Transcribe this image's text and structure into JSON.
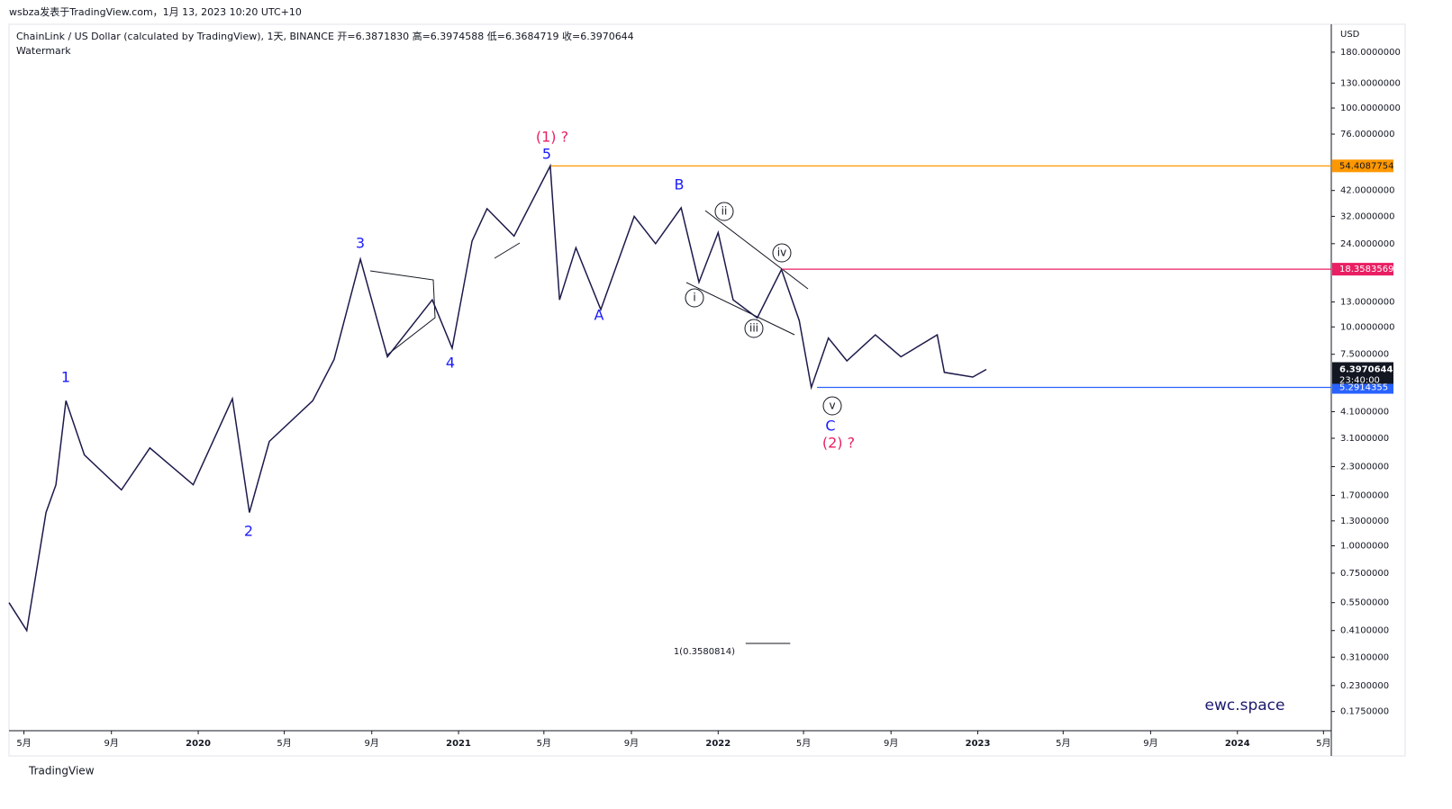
{
  "header": {
    "published": "wsbza发表于TradingView.com，1月 13, 2023 10:20 UTC+10",
    "symbol": "ChainLink / US Dollar (calculated by TradingView), 1天, BINANCE  开=6.3871830  高=6.3974588  低=6.3684719  收=6.3970644",
    "watermark": "Watermark",
    "brand": "ewc.space",
    "footer": "TradingView"
  },
  "chart_data": {
    "type": "line",
    "log_scale": true,
    "y_label": "USD",
    "xlim": [
      "2019-04-10",
      "2024-05-12"
    ],
    "ylim": [
      0.143,
      239
    ],
    "xticks": [
      {
        "value": "2019-05-01",
        "label": "5月"
      },
      {
        "value": "2019-09-01",
        "label": "9月"
      },
      {
        "value": "2020-01-01",
        "label": "2020"
      },
      {
        "value": "2020-05-01",
        "label": "5月"
      },
      {
        "value": "2020-09-01",
        "label": "9月"
      },
      {
        "value": "2021-01-01",
        "label": "2021"
      },
      {
        "value": "2021-05-01",
        "label": "5月"
      },
      {
        "value": "2021-09-01",
        "label": "9月"
      },
      {
        "value": "2022-01-01",
        "label": "2022"
      },
      {
        "value": "2022-05-01",
        "label": "5月"
      },
      {
        "value": "2022-09-01",
        "label": "9月"
      },
      {
        "value": "2023-01-01",
        "label": "2023"
      },
      {
        "value": "2023-05-01",
        "label": "5月"
      },
      {
        "value": "2023-09-01",
        "label": "9月"
      },
      {
        "value": "2024-01-01",
        "label": "2024"
      },
      {
        "value": "2024-05-01",
        "label": "5月"
      }
    ],
    "yticks": [
      {
        "value": 180,
        "label": "180.0000000"
      },
      {
        "value": 130,
        "label": "130.0000000"
      },
      {
        "value": 100,
        "label": "100.0000000"
      },
      {
        "value": 76,
        "label": "76.0000000"
      },
      {
        "value": 42,
        "label": "42.0000000"
      },
      {
        "value": 32,
        "label": "32.0000000"
      },
      {
        "value": 24,
        "label": "24.0000000"
      },
      {
        "value": 13,
        "label": "13.0000000"
      },
      {
        "value": 10,
        "label": "10.0000000"
      },
      {
        "value": 7.5,
        "label": "7.5000000"
      },
      {
        "value": 4.1,
        "label": "4.1000000"
      },
      {
        "value": 3.1,
        "label": "3.1000000"
      },
      {
        "value": 2.3,
        "label": "2.3000000"
      },
      {
        "value": 1.7,
        "label": "1.7000000"
      },
      {
        "value": 1.3,
        "label": "1.3000000"
      },
      {
        "value": 1,
        "label": "1.0000000"
      },
      {
        "value": 0.75,
        "label": "0.7500000"
      },
      {
        "value": 0.55,
        "label": "0.5500000"
      },
      {
        "value": 0.41,
        "label": "0.4100000"
      },
      {
        "value": 0.31,
        "label": "0.3100000"
      },
      {
        "value": 0.23,
        "label": "0.2300000"
      },
      {
        "value": 0.175,
        "label": "0.1750000"
      }
    ],
    "series": [
      {
        "name": "LINKUSD",
        "color": "#1c1a4a",
        "x": [
          "2019-04-10",
          "2019-05-05",
          "2019-06-01",
          "2019-06-15",
          "2019-06-29",
          "2019-07-25",
          "2019-09-15",
          "2019-10-25",
          "2019-12-25",
          "2020-02-18",
          "2020-03-13",
          "2020-04-10",
          "2020-06-10",
          "2020-07-10",
          "2020-08-16",
          "2020-09-23",
          "2020-11-25",
          "2020-12-23",
          "2021-01-20",
          "2021-02-10",
          "2021-03-20",
          "2021-05-10",
          "2021-05-23",
          "2021-06-15",
          "2021-07-20",
          "2021-09-05",
          "2021-10-05",
          "2021-11-10",
          "2021-12-05",
          "2022-01-01",
          "2022-01-22",
          "2022-02-25",
          "2022-03-31",
          "2022-04-25",
          "2022-05-12",
          "2022-06-05",
          "2022-07-01",
          "2022-08-10",
          "2022-09-15",
          "2022-11-05",
          "2022-11-15",
          "2022-12-25",
          "2023-01-13"
        ],
        "values": [
          0.55,
          0.41,
          1.42,
          1.9,
          4.6,
          2.6,
          1.8,
          2.8,
          1.9,
          4.7,
          1.42,
          3.0,
          4.6,
          7.1,
          20.4,
          7.3,
          13.3,
          8.0,
          24.7,
          34.7,
          26,
          54.4,
          13.3,
          23,
          12,
          32,
          24,
          35,
          16,
          27,
          13.3,
          11,
          18.3,
          10.7,
          5.29,
          8.9,
          7.0,
          9.2,
          7.3,
          9.2,
          6.2,
          5.9,
          6.397
        ]
      }
    ],
    "levels": [
      {
        "value": 54.4087754,
        "color": "#ff9800",
        "start": "2021-05-10"
      },
      {
        "value": 18.3583569,
        "color": "#e91e63",
        "start": "2022-03-31"
      },
      {
        "value": 5.2914355,
        "color": "#2962ff",
        "start": "2022-05-20"
      }
    ],
    "last": {
      "value": 6.3970644,
      "countdown": "23:40:00"
    },
    "fib": {
      "value": 0.3580814,
      "label": "1(0.3580814)",
      "start": "2021-12-20",
      "end": "2022-04-25"
    },
    "annotations": [
      "1",
      "2",
      "3",
      "4",
      "5",
      "(1) ?",
      "A",
      "B",
      "C",
      "(2) ?",
      "i",
      "ii",
      "iii",
      "iv",
      "v"
    ]
  }
}
